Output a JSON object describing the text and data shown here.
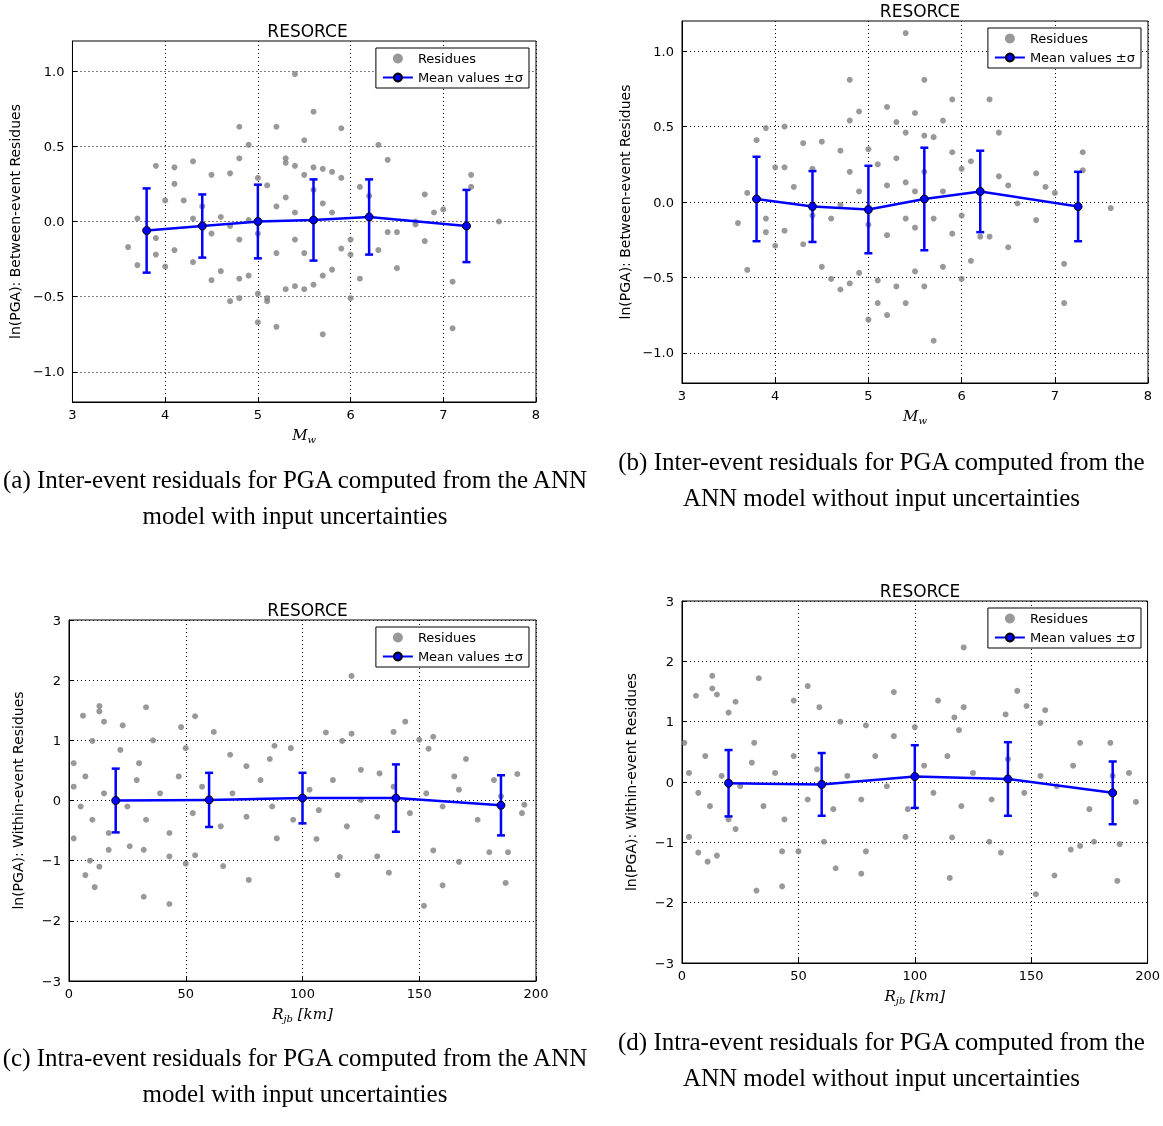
{
  "chart_data": [
    {
      "type": "scatter",
      "title": "RESORCE",
      "xlabel": "M$_{w}$",
      "ylabel": "ln(PGA): Between-event Residues",
      "annotations": [
        "(a) Inter-event residuals for PGA computed from the ANN model with input uncertainties"
      ],
      "xlim": [
        3,
        8
      ],
      "ylim": [
        -1.2,
        1.2
      ],
      "xticks": [
        3,
        4,
        5,
        6,
        7,
        8
      ],
      "yticks": [
        {
          "value": -1,
          "label": "−1.0"
        },
        {
          "value": -0.5,
          "label": "−0.5"
        },
        {
          "value": 0,
          "label": "0.0"
        },
        {
          "value": 0.5,
          "label": "0.5"
        },
        {
          "value": 1,
          "label": "1.0"
        }
      ],
      "grid": true,
      "legend": "top right",
      "series": [
        {
          "name": "Residues",
          "color": "#808080",
          "x": [
            5.4,
            5.6,
            4.8,
            5.2,
            5.9,
            5.5,
            4.9,
            6.3,
            4.8,
            5.3,
            6.4,
            4.3,
            3.9,
            4.1,
            5.3,
            5.4,
            5.6,
            5.7,
            5.8,
            7.3,
            4.5,
            4.7,
            5.0,
            5.5,
            5.9,
            4.1,
            5.1,
            6.1,
            7.3,
            4.2,
            4.0,
            6.8,
            7.0,
            6.9,
            3.7,
            7.6,
            6.7,
            3.6,
            3.9,
            3.7,
            3.9,
            4.0,
            4.1,
            4.3,
            4.5,
            4.6,
            4.7,
            4.8,
            4.8,
            4.9,
            5.0,
            5.0,
            5.1,
            5.1,
            5.2,
            5.3,
            5.4,
            5.5,
            5.6,
            5.7,
            5.7,
            5.8,
            5.9,
            6.0,
            6.0,
            6.1,
            6.3,
            6.5,
            6.8,
            7.1,
            7.1,
            6.4,
            6.5,
            4.7,
            4.8,
            4.9,
            5.2,
            5.3,
            5.4,
            5.6,
            5.7,
            5.8,
            5.0,
            5.2,
            5.4,
            5.5,
            4.5,
            4.3,
            4.4,
            4.6,
            6.7,
            6.2,
            6.0
          ],
          "values": [
            0.98,
            0.73,
            0.63,
            0.63,
            0.62,
            0.54,
            0.51,
            0.51,
            0.42,
            0.42,
            0.41,
            0.4,
            0.37,
            0.36,
            0.39,
            0.37,
            0.36,
            0.35,
            0.33,
            0.31,
            0.31,
            0.32,
            0.29,
            0.31,
            0.29,
            0.25,
            0.24,
            0.23,
            0.23,
            0.14,
            0.14,
            0.18,
            0.08,
            0.06,
            0.02,
            0.0,
            0.0,
            -0.17,
            -0.11,
            -0.29,
            -0.22,
            -0.3,
            -0.19,
            -0.27,
            -0.39,
            -0.33,
            -0.53,
            -0.51,
            -0.38,
            -0.36,
            -0.48,
            -0.67,
            -0.51,
            -0.53,
            -0.7,
            -0.45,
            -0.43,
            -0.45,
            -0.42,
            -0.75,
            -0.36,
            -0.32,
            -0.18,
            -0.51,
            -0.22,
            -0.38,
            -0.19,
            -0.31,
            -0.13,
            -0.4,
            -0.71,
            -0.07,
            -0.07,
            -0.03,
            -0.12,
            0.01,
            0.1,
            0.16,
            0.06,
            0.21,
            0.12,
            0.06,
            -0.08,
            -0.21,
            -0.12,
            -0.21,
            -0.08,
            0.02,
            0.1,
            0.03,
            -0.02,
            0.17,
            -0.12
          ]
        },
        {
          "name": "Mean values ±σ",
          "type": "line",
          "color": "#0000ff",
          "marker": "circle",
          "x": [
            3.8,
            4.4,
            5.0,
            5.6,
            6.2,
            7.25
          ],
          "values": [
            -0.06,
            -0.03,
            0.0,
            0.01,
            0.03,
            -0.03
          ],
          "errors": [
            0.28,
            0.21,
            0.245,
            0.27,
            0.25,
            0.24
          ]
        }
      ]
    },
    {
      "type": "scatter",
      "title": "RESORCE",
      "xlabel": "M$_{w}$",
      "ylabel": "ln(PGA): Between-event Residues",
      "annotations": [
        "(b) Inter-event residuals for PGA computed from the ANN model without input uncertainties"
      ],
      "xlim": [
        3,
        8
      ],
      "ylim": [
        -1.2,
        1.2
      ],
      "xticks": [
        3,
        4,
        5,
        6,
        7,
        8
      ],
      "yticks": [
        {
          "value": -1,
          "label": "−1.0"
        },
        {
          "value": -0.5,
          "label": "−0.5"
        },
        {
          "value": 0,
          "label": "0.0"
        },
        {
          "value": 0.5,
          "label": "0.5"
        },
        {
          "value": 1,
          "label": "1.0"
        }
      ],
      "grid": true,
      "legend": "top right",
      "series": [
        {
          "name": "Residues",
          "color": "#808080",
          "x": [
            5.4,
            4.8,
            5.6,
            5.9,
            6.3,
            4.9,
            5.2,
            5.5,
            4.8,
            5.8,
            3.9,
            4.1,
            5.3,
            6.4,
            5.4,
            3.8,
            4.5,
            4.3,
            5.6,
            5.7,
            4.7,
            5.0,
            5.9,
            7.3,
            4.0,
            4.1,
            4.4,
            6.1,
            7.3,
            6.8,
            6.4,
            4.2,
            6.9,
            7.0,
            3.7,
            7.6,
            3.6,
            3.9,
            3.7,
            3.9,
            4.0,
            4.1,
            4.3,
            4.5,
            4.6,
            4.7,
            4.8,
            4.9,
            5.0,
            5.1,
            5.1,
            5.2,
            5.3,
            5.4,
            5.5,
            5.6,
            5.7,
            5.8,
            6.0,
            6.1,
            6.3,
            6.5,
            6.8,
            7.1,
            7.1,
            4.7,
            4.8,
            4.9,
            5.1,
            5.2,
            5.3,
            5.4,
            5.5,
            5.6,
            5.8,
            6.0,
            5.0,
            5.2,
            5.4,
            5.5,
            5.7,
            5.9,
            6.0,
            6.2,
            4.6,
            4.4,
            6.5,
            6.6
          ],
          "values": [
            1.12,
            0.81,
            0.81,
            0.68,
            0.68,
            0.6,
            0.63,
            0.59,
            0.54,
            0.54,
            0.49,
            0.5,
            0.53,
            0.46,
            0.46,
            0.41,
            0.4,
            0.39,
            0.44,
            0.43,
            0.34,
            0.35,
            0.33,
            0.33,
            0.23,
            0.23,
            0.22,
            0.27,
            0.21,
            0.19,
            0.17,
            0.1,
            0.1,
            0.06,
            0.06,
            -0.04,
            -0.14,
            -0.11,
            -0.45,
            -0.2,
            -0.29,
            -0.19,
            -0.28,
            -0.43,
            -0.51,
            -0.58,
            -0.54,
            -0.47,
            -0.78,
            -0.52,
            -0.67,
            -0.75,
            -0.56,
            -0.67,
            -0.46,
            -0.56,
            -0.92,
            -0.43,
            -0.51,
            -0.39,
            -0.23,
            -0.3,
            -0.12,
            -0.41,
            -0.67,
            -0.02,
            0.2,
            0.07,
            0.25,
            0.11,
            0.29,
            0.13,
            0.07,
            0.2,
            0.07,
            0.22,
            -0.15,
            -0.22,
            -0.11,
            -0.17,
            -0.11,
            -0.21,
            -0.09,
            -0.23,
            -0.11,
            -0.09,
            0.11,
            -0.01
          ]
        },
        {
          "name": "Mean values ±σ",
          "type": "line",
          "color": "#0000ff",
          "marker": "circle",
          "x": [
            3.8,
            4.4,
            5.0,
            5.6,
            6.2,
            7.25
          ],
          "values": [
            0.02,
            -0.03,
            -0.05,
            0.02,
            0.07,
            -0.03
          ],
          "errors": [
            0.28,
            0.235,
            0.29,
            0.34,
            0.27,
            0.23
          ]
        }
      ]
    },
    {
      "type": "scatter",
      "title": "RESORCE",
      "xlabel": "R$_{jb}$ [km]",
      "ylabel": "ln(PGA): Within-event Residues",
      "annotations": [
        "(c) Intra-event residuals for PGA computed from the ANN model with input uncertainties"
      ],
      "xlim": [
        0,
        200
      ],
      "ylim": [
        -3,
        3
      ],
      "xticks": [
        0,
        50,
        100,
        150,
        200
      ],
      "yticks": [
        {
          "value": -3,
          "label": "−3"
        },
        {
          "value": -2,
          "label": "−2"
        },
        {
          "value": -1,
          "label": "−1"
        },
        0,
        1,
        2,
        3
      ],
      "grid": true,
      "legend": "top right",
      "series": [
        {
          "name": "Residues",
          "color": "#808080",
          "x": [
            121,
            13,
            13,
            6,
            33,
            54,
            15,
            23,
            48,
            62,
            144,
            110,
            121,
            139,
            156,
            150,
            117,
            88,
            95,
            154,
            69,
            86,
            170,
            192,
            10,
            36,
            22,
            50,
            2,
            30,
            76,
            125,
            133,
            165,
            182,
            50,
            9,
            7,
            11,
            13,
            32,
            43,
            77,
            66,
            54,
            32,
            43,
            115,
            116,
            132,
            137,
            152,
            160,
            167,
            187,
            188,
            180,
            156,
            89,
            106,
            2,
            17,
            26,
            2,
            5,
            7,
            10,
            15,
            17,
            25,
            29,
            33,
            39,
            43,
            47,
            53,
            57,
            65,
            70,
            76,
            82,
            87,
            96,
            103,
            107,
            113,
            119,
            125,
            132,
            139,
            146,
            153,
            160,
            167,
            175,
            185,
            195,
            194
          ],
          "values": [
            2.07,
            1.57,
            1.48,
            1.41,
            1.55,
            1.4,
            1.31,
            1.25,
            1.22,
            1.14,
            1.31,
            1.13,
            1.11,
            1.14,
            1.06,
            1.01,
            0.99,
            0.91,
            0.87,
            0.86,
            0.76,
            0.69,
            0.69,
            0.44,
            0.99,
            1.0,
            0.84,
            0.87,
            0.62,
            0.62,
            0.57,
            0.51,
            0.45,
            0.4,
            0.34,
            -1.05,
            -1.0,
            -1.24,
            -1.44,
            -1.1,
            -1.6,
            -1.72,
            -1.32,
            -1.09,
            -0.91,
            -0.82,
            -0.93,
            -1.24,
            -0.94,
            -0.93,
            -1.2,
            -1.75,
            -1.41,
            -1.02,
            -1.37,
            -0.86,
            -0.86,
            -0.83,
            -0.63,
            -0.64,
            -0.63,
            -0.82,
            -0.76,
            0.23,
            -0.1,
            0.4,
            -0.32,
            0.12,
            -0.54,
            -0.1,
            0.34,
            -0.32,
            0.12,
            -0.54,
            0.4,
            -0.21,
            0.23,
            -0.43,
            0.12,
            -0.27,
            0.34,
            -0.1,
            -0.32,
            0.18,
            -0.16,
            0.34,
            -0.43,
            0.01,
            -0.27,
            0.23,
            -0.21,
            0.12,
            -0.1,
            0.18,
            -0.32,
            0.07,
            -0.07,
            -0.21
          ]
        },
        {
          "name": "Mean values ±σ",
          "type": "line",
          "color": "#0000ff",
          "marker": "circle",
          "x": [
            20,
            60,
            100,
            140,
            185
          ],
          "values": [
            0.0,
            0.01,
            0.04,
            0.04,
            -0.08
          ],
          "errors": [
            0.53,
            0.45,
            0.42,
            0.56,
            0.5
          ]
        }
      ]
    },
    {
      "type": "scatter",
      "title": "RESORCE",
      "xlabel": "R$_{jb}$ [km]",
      "ylabel": "ln(PGA): Within-event Residues",
      "annotations": [
        "(d) Intra-event residuals for PGA computed from the ANN model without input uncertainties"
      ],
      "xlim": [
        0,
        200
      ],
      "ylim": [
        -3,
        3
      ],
      "xticks": [
        0,
        50,
        100,
        150,
        200
      ],
      "yticks": [
        {
          "value": -3,
          "label": "−3"
        },
        {
          "value": -2,
          "label": "−2"
        },
        {
          "value": -1,
          "label": "−1"
        },
        0,
        1,
        2,
        3
      ],
      "grid": true,
      "legend": "top right",
      "series": [
        {
          "name": "Residues",
          "color": "#808080",
          "x": [
            121,
            13,
            33,
            54,
            13,
            6,
            15,
            23,
            48,
            91,
            144,
            110,
            148,
            59,
            121,
            156,
            20,
            139,
            117,
            154,
            68,
            79,
            100,
            119,
            91,
            1,
            31,
            184,
            171,
            195,
            3,
            7,
            11,
            15,
            32,
            43,
            43,
            50,
            66,
            77,
            79,
            96,
            115,
            116,
            137,
            152,
            160,
            167,
            171,
            187,
            188,
            177,
            132,
            61,
            23,
            3,
            7,
            10,
            12,
            17,
            20,
            25,
            30,
            35,
            40,
            44,
            48,
            54,
            58,
            65,
            71,
            77,
            83,
            88,
            97,
            104,
            108,
            114,
            120,
            125,
            133,
            140,
            147,
            154,
            161,
            168,
            175,
            185,
            192
          ],
          "values": [
            2.23,
            1.76,
            1.72,
            1.59,
            1.55,
            1.43,
            1.45,
            1.33,
            1.35,
            1.49,
            1.51,
            1.35,
            1.26,
            1.24,
            1.24,
            1.19,
            1.15,
            1.12,
            1.07,
            0.98,
            1.0,
            0.94,
            0.91,
            0.86,
            0.76,
            0.65,
            0.65,
            0.65,
            0.65,
            -0.33,
            -0.91,
            -1.17,
            -1.32,
            -1.22,
            -1.8,
            -1.73,
            -1.15,
            -1.15,
            -1.43,
            -1.52,
            -1.15,
            -0.91,
            -1.59,
            -0.92,
            -1.17,
            -1.86,
            -1.55,
            -1.12,
            -1.06,
            -1.64,
            -1.03,
            -0.99,
            -0.99,
            -0.99,
            -0.78,
            0.15,
            -0.18,
            0.43,
            -0.4,
            0.1,
            -0.62,
            -0.07,
            0.32,
            -0.4,
            0.15,
            -0.62,
            0.43,
            -0.29,
            0.21,
            -0.45,
            0.1,
            -0.29,
            0.43,
            -0.07,
            -0.45,
            0.27,
            -0.18,
            0.43,
            -0.4,
            0.15,
            -0.29,
            0.38,
            -0.18,
            0.1,
            -0.07,
            0.27,
            -0.45,
            0.1,
            0.15
          ]
        },
        {
          "name": "Mean values ±σ",
          "type": "line",
          "color": "#0000ff",
          "marker": "circle",
          "x": [
            20,
            60,
            100,
            140,
            185
          ],
          "values": [
            -0.02,
            -0.04,
            0.09,
            0.05,
            -0.18
          ],
          "errors": [
            0.55,
            0.52,
            0.52,
            0.61,
            0.52
          ]
        }
      ]
    }
  ]
}
